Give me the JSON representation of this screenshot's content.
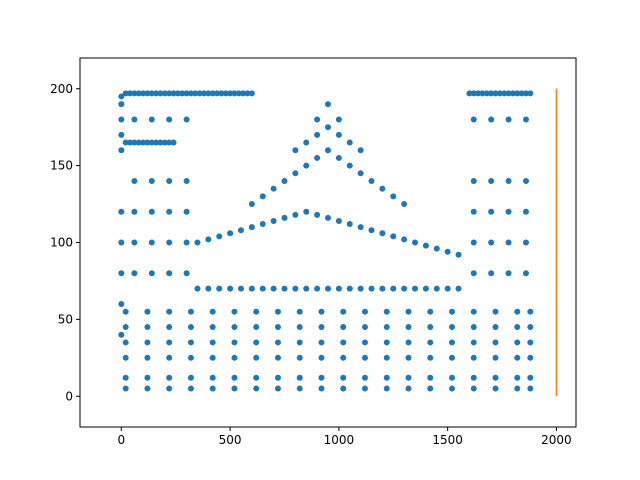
{
  "chart_data": {
    "type": "scatter",
    "title": "",
    "xlabel": "",
    "ylabel": "",
    "xlim": [
      -190,
      2090
    ],
    "ylim": [
      -20,
      220
    ],
    "grid": false,
    "legend": "none",
    "x_ticks": [
      0,
      500,
      1000,
      1500,
      2000
    ],
    "y_ticks": [
      0,
      50,
      100,
      150,
      200
    ],
    "series": [
      {
        "kind": "scatter",
        "color": "#1f77b4",
        "description_regions": "dense point cloud resembling a domed building",
        "x": [
          0,
          0,
          0,
          0,
          0,
          0,
          0,
          0,
          0,
          0,
          20,
          40,
          60,
          80,
          100,
          120,
          140,
          160,
          180,
          200,
          220,
          240,
          260,
          280,
          300,
          320,
          340,
          360,
          380,
          400,
          420,
          440,
          460,
          480,
          500,
          520,
          540,
          560,
          580,
          600,
          1600,
          1620,
          1640,
          1660,
          1680,
          1700,
          1720,
          1740,
          1760,
          1780,
          1800,
          1820,
          1840,
          1860,
          1880,
          20,
          40,
          60,
          80,
          100,
          120,
          140,
          160,
          180,
          200,
          220,
          240,
          350,
          400,
          450,
          500,
          550,
          600,
          650,
          700,
          750,
          800,
          850,
          900,
          950,
          1000,
          1050,
          1100,
          1150,
          1200,
          1250,
          1300,
          1350,
          1400,
          1450,
          1500,
          1550,
          350,
          400,
          450,
          500,
          550,
          600,
          650,
          700,
          750,
          800,
          850,
          900,
          950,
          1000,
          1050,
          1100,
          1150,
          1200,
          1250,
          1300,
          1350,
          1400,
          1450,
          1500,
          1550,
          600,
          650,
          700,
          750,
          800,
          850,
          900,
          950,
          1000,
          1050,
          1100,
          1150,
          1200,
          1250,
          1300,
          800,
          850,
          900,
          950,
          1000,
          1050,
          1100,
          900,
          950,
          1000,
          20,
          120,
          220,
          320,
          420,
          520,
          620,
          720,
          820,
          920,
          1020,
          1120,
          1220,
          1320,
          1420,
          1520,
          1620,
          1720,
          1820,
          1880,
          20,
          120,
          220,
          320,
          420,
          520,
          620,
          720,
          820,
          920,
          1020,
          1120,
          1220,
          1320,
          1420,
          1520,
          1620,
          1720,
          1820,
          1880,
          20,
          120,
          220,
          320,
          420,
          520,
          620,
          720,
          820,
          920,
          1020,
          1120,
          1220,
          1320,
          1420,
          1520,
          1620,
          1720,
          1820,
          1880,
          20,
          120,
          220,
          320,
          420,
          520,
          620,
          720,
          820,
          920,
          1020,
          1120,
          1220,
          1320,
          1420,
          1520,
          1620,
          1720,
          1820,
          1880,
          20,
          120,
          220,
          320,
          420,
          520,
          620,
          720,
          820,
          920,
          1020,
          1120,
          1220,
          1320,
          1420,
          1520,
          1620,
          1720,
          1820,
          1880,
          20,
          120,
          220,
          320,
          420,
          520,
          620,
          720,
          820,
          920,
          1020,
          1120,
          1220,
          1320,
          1420,
          1520,
          1620,
          1720,
          1820,
          1880,
          60,
          140,
          220,
          300,
          1620,
          1700,
          1780,
          1860,
          60,
          140,
          220,
          300,
          1620,
          1700,
          1780,
          1860,
          60,
          140,
          220,
          300,
          1620,
          1700,
          1780,
          1860,
          60,
          140,
          220,
          300,
          1620,
          1700,
          1780,
          1860,
          60,
          140,
          220,
          300,
          1620,
          1700,
          1780,
          1860
        ],
        "y": [
          195,
          190,
          180,
          170,
          160,
          120,
          100,
          80,
          60,
          40,
          197,
          197,
          197,
          197,
          197,
          197,
          197,
          197,
          197,
          197,
          197,
          197,
          197,
          197,
          197,
          197,
          197,
          197,
          197,
          197,
          197,
          197,
          197,
          197,
          197,
          197,
          197,
          197,
          197,
          197,
          197,
          197,
          197,
          197,
          197,
          197,
          197,
          197,
          197,
          197,
          197,
          197,
          197,
          197,
          197,
          165,
          165,
          165,
          165,
          165,
          165,
          165,
          165,
          165,
          165,
          165,
          165,
          100,
          102,
          104,
          106,
          108,
          110,
          112,
          114,
          116,
          118,
          120,
          118,
          116,
          114,
          112,
          110,
          108,
          106,
          104,
          102,
          100,
          98,
          96,
          94,
          92,
          70,
          70,
          70,
          70,
          70,
          70,
          70,
          70,
          70,
          70,
          70,
          70,
          70,
          70,
          70,
          70,
          70,
          70,
          70,
          70,
          70,
          70,
          70,
          70,
          70,
          125,
          130,
          135,
          140,
          145,
          150,
          155,
          160,
          155,
          150,
          145,
          140,
          135,
          130,
          125,
          160,
          165,
          170,
          175,
          170,
          165,
          160,
          180,
          190,
          180,
          5,
          5,
          5,
          5,
          5,
          5,
          5,
          5,
          5,
          5,
          5,
          5,
          5,
          5,
          5,
          5,
          5,
          5,
          5,
          5,
          12,
          12,
          12,
          12,
          12,
          12,
          12,
          12,
          12,
          12,
          12,
          12,
          12,
          12,
          12,
          12,
          12,
          12,
          12,
          12,
          25,
          25,
          25,
          25,
          25,
          25,
          25,
          25,
          25,
          25,
          25,
          25,
          25,
          25,
          25,
          25,
          25,
          25,
          25,
          25,
          35,
          35,
          35,
          35,
          35,
          35,
          35,
          35,
          35,
          35,
          35,
          35,
          35,
          35,
          35,
          35,
          35,
          35,
          35,
          35,
          45,
          45,
          45,
          45,
          45,
          45,
          45,
          45,
          45,
          45,
          45,
          45,
          45,
          45,
          45,
          45,
          45,
          45,
          45,
          45,
          55,
          55,
          55,
          55,
          55,
          55,
          55,
          55,
          55,
          55,
          55,
          55,
          55,
          55,
          55,
          55,
          55,
          55,
          55,
          55,
          80,
          80,
          80,
          80,
          80,
          80,
          80,
          80,
          100,
          100,
          100,
          100,
          100,
          100,
          100,
          100,
          120,
          120,
          120,
          120,
          120,
          120,
          120,
          120,
          140,
          140,
          140,
          140,
          140,
          140,
          140,
          140,
          180,
          180,
          180,
          180,
          180,
          180,
          180,
          180
        ]
      },
      {
        "kind": "line",
        "color": "#ff7f0e",
        "x": [
          2000,
          2000
        ],
        "y": [
          0,
          200
        ]
      }
    ]
  }
}
